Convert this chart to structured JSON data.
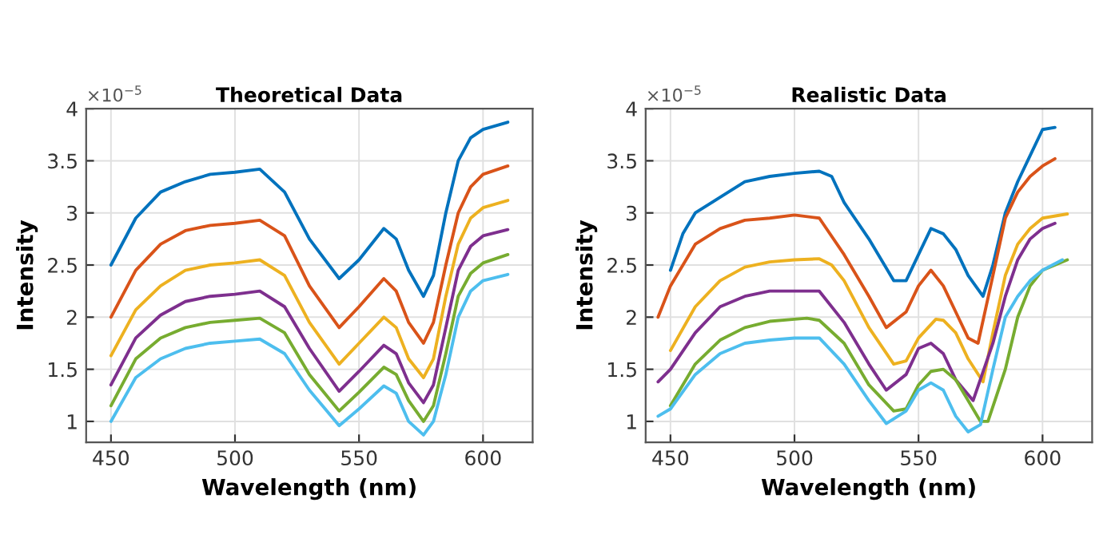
{
  "chart_data": [
    {
      "type": "line",
      "title": "Theoretical Data",
      "xlabel": "Wavelength (nm)",
      "ylabel": "Intensity",
      "annotations": [
        "×10$^{−5}$"
      ],
      "xlim": [
        440,
        620
      ],
      "xticks": [
        450,
        500,
        550,
        600
      ],
      "ylim": [
        0.8,
        4
      ],
      "yticks": [
        1,
        1.5,
        2,
        2.5,
        3,
        3.5,
        4
      ],
      "grid": true,
      "line_style": "solid",
      "marker": "none",
      "x": [
        450,
        460,
        470,
        480,
        490,
        500,
        510,
        520,
        530,
        542,
        550,
        560,
        565,
        570,
        576,
        580,
        585,
        590,
        595,
        600,
        610
      ],
      "series": [
        {
          "color": "#0072bd",
          "values": [
            2.5,
            2.95,
            3.2,
            3.3,
            3.37,
            3.39,
            3.42,
            3.2,
            2.75,
            2.37,
            2.55,
            2.85,
            2.75,
            2.45,
            2.2,
            2.4,
            3.0,
            3.5,
            3.72,
            3.8,
            3.87
          ]
        },
        {
          "color": "#d95319",
          "values": [
            2.0,
            2.45,
            2.7,
            2.83,
            2.88,
            2.9,
            2.93,
            2.78,
            2.3,
            1.9,
            2.1,
            2.37,
            2.25,
            1.95,
            1.75,
            1.95,
            2.5,
            3.0,
            3.25,
            3.37,
            3.45
          ]
        },
        {
          "color": "#edb120",
          "values": [
            1.63,
            2.07,
            2.3,
            2.45,
            2.5,
            2.52,
            2.55,
            2.4,
            1.95,
            1.55,
            1.75,
            2.0,
            1.9,
            1.6,
            1.42,
            1.6,
            2.2,
            2.7,
            2.95,
            3.05,
            3.12
          ]
        },
        {
          "color": "#7e2f8e",
          "values": [
            1.35,
            1.8,
            2.02,
            2.15,
            2.2,
            2.22,
            2.25,
            2.1,
            1.7,
            1.29,
            1.48,
            1.73,
            1.65,
            1.37,
            1.18,
            1.35,
            1.9,
            2.45,
            2.68,
            2.78,
            2.84
          ]
        },
        {
          "color": "#77ac30",
          "values": [
            1.15,
            1.6,
            1.8,
            1.9,
            1.95,
            1.97,
            1.99,
            1.85,
            1.45,
            1.1,
            1.28,
            1.52,
            1.45,
            1.2,
            1.0,
            1.15,
            1.65,
            2.2,
            2.42,
            2.52,
            2.6
          ]
        },
        {
          "color": "#4dbeee",
          "values": [
            1.0,
            1.42,
            1.6,
            1.7,
            1.75,
            1.77,
            1.79,
            1.65,
            1.3,
            0.96,
            1.12,
            1.34,
            1.27,
            1.0,
            0.87,
            1.0,
            1.45,
            2.0,
            2.25,
            2.35,
            2.41
          ]
        }
      ]
    },
    {
      "type": "line",
      "title": "Realistic Data",
      "xlabel": "Wavelength (nm)",
      "ylabel": "Intensity",
      "annotations": [
        "×10$^{−5}$"
      ],
      "xlim": [
        440,
        620
      ],
      "xticks": [
        450,
        500,
        550,
        600
      ],
      "ylim": [
        0.8,
        4
      ],
      "yticks": [
        1,
        1.5,
        2,
        2.5,
        3,
        3.5,
        4
      ],
      "grid": true,
      "line_style": "solid",
      "marker": "none",
      "series": [
        {
          "color": "#0072bd",
          "x": [
            450,
            455,
            460,
            470,
            480,
            490,
            500,
            510,
            515,
            520,
            530,
            540,
            545,
            550,
            555,
            560,
            565,
            570,
            576,
            580,
            585,
            590,
            595,
            600,
            605
          ],
          "values": [
            2.45,
            2.8,
            3.0,
            3.15,
            3.3,
            3.35,
            3.38,
            3.4,
            3.35,
            3.1,
            2.75,
            2.35,
            2.35,
            2.6,
            2.85,
            2.8,
            2.65,
            2.4,
            2.2,
            2.5,
            3.0,
            3.3,
            3.55,
            3.8,
            3.82
          ]
        },
        {
          "color": "#d95319",
          "x": [
            445,
            450,
            460,
            470,
            480,
            490,
            500,
            510,
            520,
            530,
            537,
            545,
            550,
            555,
            560,
            565,
            570,
            574,
            580,
            585,
            590,
            595,
            600,
            605
          ],
          "values": [
            2.0,
            2.3,
            2.7,
            2.85,
            2.93,
            2.95,
            2.98,
            2.95,
            2.6,
            2.2,
            1.9,
            2.05,
            2.3,
            2.45,
            2.3,
            2.05,
            1.8,
            1.75,
            2.4,
            2.95,
            3.2,
            3.35,
            3.45,
            3.52
          ]
        },
        {
          "color": "#edb120",
          "x": [
            450,
            460,
            470,
            480,
            490,
            500,
            510,
            515,
            520,
            530,
            540,
            545,
            550,
            557,
            560,
            565,
            570,
            576,
            580,
            585,
            590,
            595,
            600,
            610
          ],
          "values": [
            1.68,
            2.1,
            2.35,
            2.48,
            2.53,
            2.55,
            2.56,
            2.5,
            2.35,
            1.9,
            1.55,
            1.58,
            1.8,
            1.98,
            1.97,
            1.85,
            1.6,
            1.38,
            1.85,
            2.4,
            2.7,
            2.85,
            2.95,
            2.99
          ]
        },
        {
          "color": "#7e2f8e",
          "x": [
            445,
            450,
            460,
            470,
            480,
            490,
            500,
            510,
            520,
            530,
            537,
            545,
            550,
            555,
            560,
            565,
            572,
            580,
            585,
            590,
            595,
            600,
            605
          ],
          "values": [
            1.38,
            1.5,
            1.85,
            2.1,
            2.2,
            2.25,
            2.25,
            2.25,
            1.95,
            1.55,
            1.3,
            1.45,
            1.7,
            1.75,
            1.65,
            1.4,
            1.2,
            1.75,
            2.2,
            2.55,
            2.75,
            2.85,
            2.9
          ]
        },
        {
          "color": "#77ac30",
          "x": [
            450,
            460,
            470,
            480,
            490,
            500,
            505,
            510,
            520,
            530,
            540,
            545,
            550,
            555,
            560,
            565,
            570,
            575,
            578,
            585,
            590,
            595,
            600,
            610
          ],
          "values": [
            1.15,
            1.55,
            1.78,
            1.9,
            1.96,
            1.98,
            1.99,
            1.97,
            1.75,
            1.35,
            1.1,
            1.12,
            1.35,
            1.48,
            1.5,
            1.4,
            1.2,
            1.0,
            1.0,
            1.5,
            2.0,
            2.3,
            2.45,
            2.55
          ]
        },
        {
          "color": "#4dbeee",
          "x": [
            445,
            450,
            460,
            470,
            480,
            490,
            500,
            510,
            520,
            530,
            537,
            545,
            550,
            555,
            560,
            565,
            570,
            575,
            580,
            585,
            590,
            595,
            600,
            608
          ],
          "values": [
            1.05,
            1.12,
            1.45,
            1.65,
            1.75,
            1.78,
            1.8,
            1.8,
            1.55,
            1.2,
            0.98,
            1.1,
            1.3,
            1.37,
            1.3,
            1.05,
            0.9,
            0.97,
            1.5,
            2.0,
            2.2,
            2.35,
            2.45,
            2.55
          ]
        }
      ]
    }
  ]
}
